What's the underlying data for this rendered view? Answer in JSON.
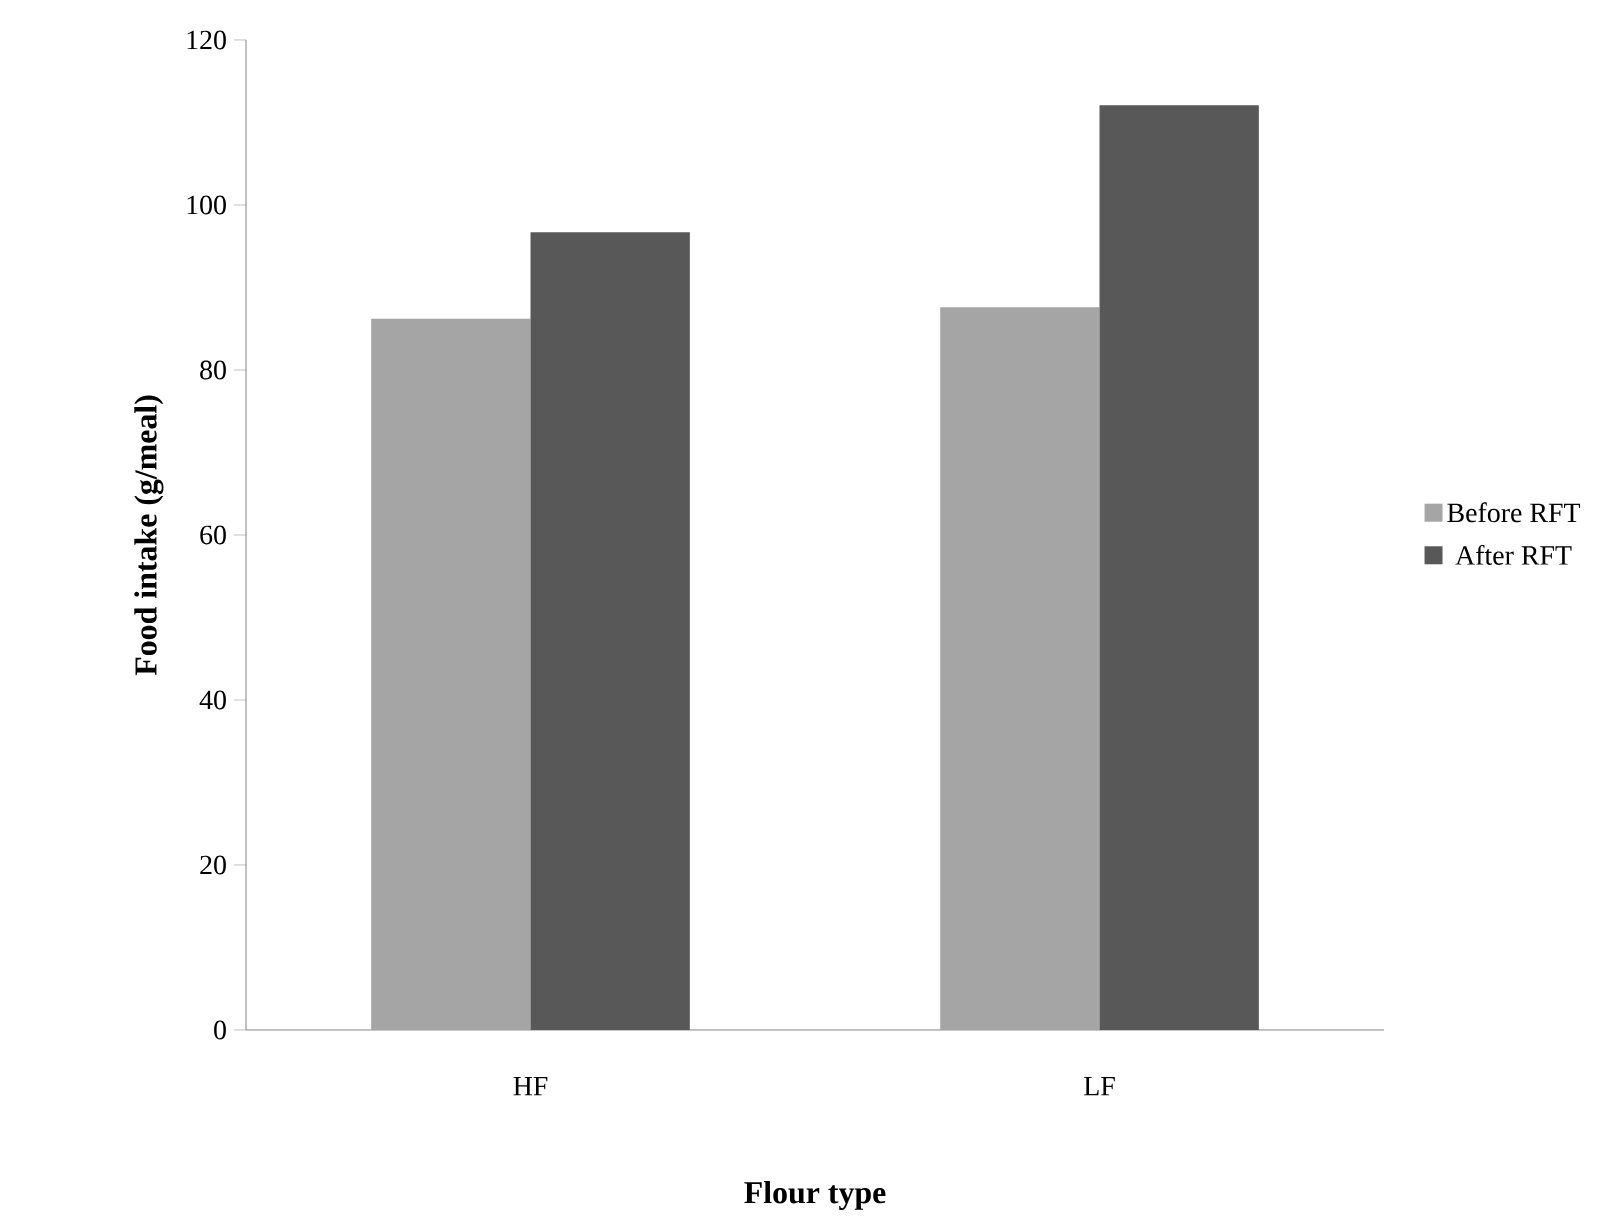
{
  "chart_data": {
    "type": "bar",
    "xlabel": "Flour type",
    "ylabel": "Food intake (g/meal)",
    "categories": [
      "HF",
      "LF"
    ],
    "series": [
      {
        "name": "Before RFT",
        "color": "#a5a5a5",
        "values": [
          86.2,
          87.6
        ]
      },
      {
        "name": "After RFT",
        "color": "#585858",
        "values": [
          96.7,
          112.1
        ]
      }
    ],
    "ylim": [
      0,
      120
    ],
    "yticks": [
      0,
      20,
      40,
      60,
      80,
      100,
      120
    ],
    "grid": false,
    "legend": "right"
  }
}
